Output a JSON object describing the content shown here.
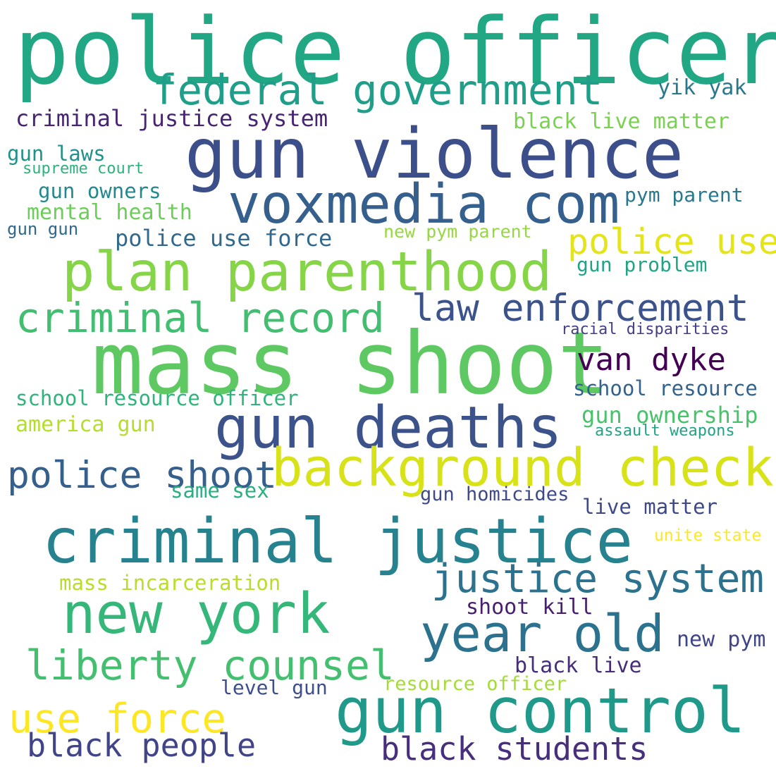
{
  "words": [
    {
      "text": "police officer",
      "color": "#22a784"
    },
    {
      "text": "gun violence",
      "color": "#3c4f8a"
    },
    {
      "text": "mass shoot",
      "color": "#5ec962"
    },
    {
      "text": "federal government",
      "color": "#1f9e89"
    },
    {
      "text": "voxmedia com",
      "color": "#355f8d"
    },
    {
      "text": "plan parenthood",
      "color": "#86d549"
    },
    {
      "text": "criminal record",
      "color": "#42be71"
    },
    {
      "text": "law enforcement",
      "color": "#3b528b"
    },
    {
      "text": "gun deaths",
      "color": "#3b528b"
    },
    {
      "text": "background check",
      "color": "#d8e219"
    },
    {
      "text": "police shoot",
      "color": "#355f8d"
    },
    {
      "text": "criminal justice",
      "color": "#26828e"
    },
    {
      "text": "new york",
      "color": "#35b779"
    },
    {
      "text": "justice system",
      "color": "#2c728e"
    },
    {
      "text": "year old",
      "color": "#2c728e"
    },
    {
      "text": "liberty counsel",
      "color": "#44bf70"
    },
    {
      "text": "gun control",
      "color": "#1f9a8a"
    },
    {
      "text": "use force",
      "color": "#fde725"
    },
    {
      "text": "black people",
      "color": "#414487"
    },
    {
      "text": "black students",
      "color": "#472f7d"
    },
    {
      "text": "criminal justice system",
      "color": "#482475"
    },
    {
      "text": "yik yak",
      "color": "#2a788e"
    },
    {
      "text": "black live matter",
      "color": "#7ad151"
    },
    {
      "text": "gun laws",
      "color": "#21918c"
    },
    {
      "text": "supreme court",
      "color": "#2db27d"
    },
    {
      "text": "gun owners",
      "color": "#23898e"
    },
    {
      "text": "mental health",
      "color": "#6ccd5a"
    },
    {
      "text": "gun gun",
      "color": "#31688e"
    },
    {
      "text": "police use force",
      "color": "#31688e"
    },
    {
      "text": "new pym parent",
      "color": "#95d840"
    },
    {
      "text": "pym parent",
      "color": "#2a788e"
    },
    {
      "text": "police use",
      "color": "#e5e419"
    },
    {
      "text": "gun problem",
      "color": "#20a486"
    },
    {
      "text": "racial disparities",
      "color": "#433e85"
    },
    {
      "text": "van dyke",
      "color": "#440154"
    },
    {
      "text": "school resource",
      "color": "#33638d"
    },
    {
      "text": "school resource officer",
      "color": "#2fb47c"
    },
    {
      "text": "gun ownership",
      "color": "#4ac16d"
    },
    {
      "text": "assault weapons",
      "color": "#20a386"
    },
    {
      "text": "america gun",
      "color": "#b5de2b"
    },
    {
      "text": "same sex",
      "color": "#29af7f"
    },
    {
      "text": "gun homicides",
      "color": "#3e4a89"
    },
    {
      "text": "live matter",
      "color": "#3e4989"
    },
    {
      "text": "unite state",
      "color": "#fde725"
    },
    {
      "text": "mass incarceration",
      "color": "#b8de29"
    },
    {
      "text": "shoot kill",
      "color": "#481f70"
    },
    {
      "text": "new pym",
      "color": "#404588"
    },
    {
      "text": "black live",
      "color": "#472c7a"
    },
    {
      "text": "level gun",
      "color": "#3d4e8a"
    },
    {
      "text": "resource officer",
      "color": "#a5db36"
    }
  ]
}
